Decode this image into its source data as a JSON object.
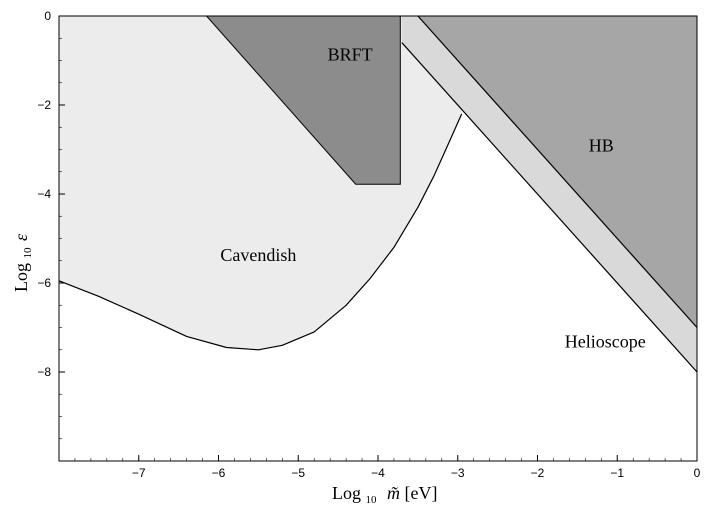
{
  "chart_data": {
    "type": "area",
    "xlabel": "Log₁₀ m̃[eV]",
    "ylabel": "Log₁₀ ε",
    "xlim": [
      -8,
      0
    ],
    "ylim": [
      -10,
      0
    ],
    "xticks": [
      -7,
      -6,
      -5,
      -4,
      -3,
      -2,
      -1,
      0
    ],
    "yticks": [
      0,
      -2,
      -4,
      -6,
      -8
    ],
    "xtick_labels": [
      "−7",
      "−6",
      "−5",
      "−4",
      "−3",
      "−2",
      "−1",
      "0"
    ],
    "ytick_labels": [
      "0",
      "−2",
      "−4",
      "−6",
      "−8"
    ],
    "grid": false,
    "regions": [
      {
        "name": "Cavendish",
        "fill": "#ececec",
        "label_at": [
          -5.5,
          -5.5
        ],
        "polygon": [
          [
            -8,
            0
          ],
          [
            -2.95,
            0
          ],
          [
            -2.95,
            -2.2
          ],
          [
            -3.1,
            -2.8
          ],
          [
            -3.3,
            -3.6
          ],
          [
            -3.5,
            -4.3
          ],
          [
            -3.8,
            -5.2
          ],
          [
            -4.1,
            -5.9
          ],
          [
            -4.4,
            -6.5
          ],
          [
            -4.8,
            -7.1
          ],
          [
            -5.2,
            -7.4
          ],
          [
            -5.5,
            -7.5
          ],
          [
            -5.9,
            -7.45
          ],
          [
            -6.4,
            -7.2
          ],
          [
            -7.0,
            -6.7
          ],
          [
            -7.5,
            -6.3
          ],
          [
            -8,
            -5.95
          ]
        ]
      },
      {
        "name": "Helioscope",
        "fill": "#d9d9d9",
        "label_at": [
          -1.15,
          -7.45
        ],
        "polygon": [
          [
            -3.7,
            0
          ],
          [
            -3.5,
            0
          ],
          [
            0,
            -7.0
          ],
          [
            0,
            -8.0
          ],
          [
            -3.7,
            -0.6
          ]
        ]
      },
      {
        "name": "BRFT",
        "fill": "#8c8c8c",
        "label_at": [
          -4.35,
          -1.0
        ],
        "polygon": [
          [
            -6.15,
            0
          ],
          [
            -3.72,
            0
          ],
          [
            -3.72,
            -3.78
          ],
          [
            -4.28,
            -3.78
          ]
        ]
      },
      {
        "name": "HB",
        "fill": "#a6a6a6",
        "label_at": [
          -1.2,
          -3.05
        ],
        "polygon": [
          [
            -3.5,
            0
          ],
          [
            0,
            0
          ],
          [
            0,
            -7.0
          ]
        ]
      }
    ],
    "curves": [
      {
        "name": "Cavendish boundary",
        "points": [
          [
            -8,
            -5.95
          ],
          [
            -7.5,
            -6.3
          ],
          [
            -7.0,
            -6.7
          ],
          [
            -6.4,
            -7.2
          ],
          [
            -5.9,
            -7.45
          ],
          [
            -5.5,
            -7.5
          ],
          [
            -5.2,
            -7.4
          ],
          [
            -4.8,
            -7.1
          ],
          [
            -4.4,
            -6.5
          ],
          [
            -4.1,
            -5.9
          ],
          [
            -3.8,
            -5.2
          ],
          [
            -3.5,
            -4.3
          ],
          [
            -3.3,
            -3.6
          ],
          [
            -3.1,
            -2.8
          ],
          [
            -2.95,
            -2.2
          ]
        ]
      },
      {
        "name": "Helioscope lower boundary",
        "points": [
          [
            -3.7,
            -0.6
          ],
          [
            0,
            -8.0
          ]
        ]
      },
      {
        "name": "HB boundary",
        "points": [
          [
            -3.5,
            0
          ],
          [
            0,
            -7.0
          ]
        ]
      }
    ]
  }
}
